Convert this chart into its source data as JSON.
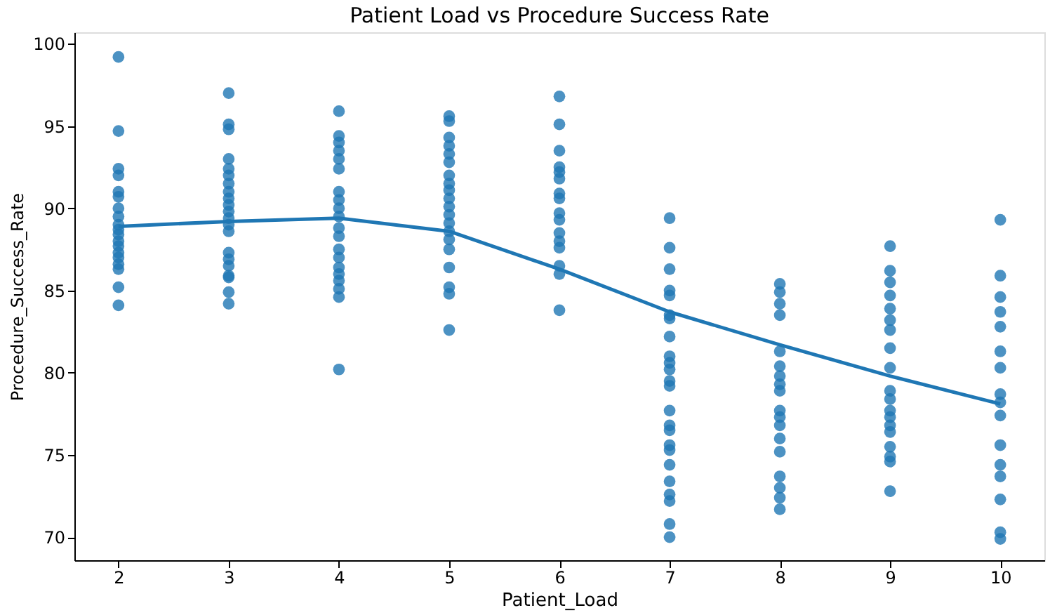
{
  "chart_data": {
    "type": "scatter",
    "title": "Patient Load vs Procedure Success Rate",
    "xlabel": "Patient_Load",
    "ylabel": "Procedure_Success_Rate",
    "xlim": [
      1.6,
      10.4
    ],
    "xticks": [
      2,
      3,
      4,
      5,
      6,
      7,
      8,
      9,
      10
    ],
    "ylim": [
      68.6,
      100.7
    ],
    "yticks": [
      70,
      75,
      80,
      85,
      90,
      95,
      100
    ],
    "grid": false,
    "series": [
      {
        "type": "scatter",
        "color": "#1f77b4",
        "marker": "circle",
        "x": [
          2,
          2,
          2,
          2,
          2,
          2,
          2,
          2,
          2,
          2,
          2,
          2,
          2,
          2,
          2,
          2,
          2,
          2,
          2,
          3,
          3,
          3,
          3,
          3,
          3,
          3,
          3,
          3,
          3,
          3,
          3,
          3,
          3,
          3,
          3,
          3,
          3,
          3,
          3,
          3,
          4,
          4,
          4,
          4,
          4,
          4,
          4,
          4,
          4,
          4,
          4,
          4,
          4,
          4,
          4,
          4,
          4,
          4,
          4,
          4,
          5,
          5,
          5,
          5,
          5,
          5,
          5,
          5,
          5,
          5,
          5,
          5,
          5,
          5,
          5,
          5,
          5,
          5,
          5,
          5,
          6,
          6,
          6,
          6,
          6,
          6,
          6,
          6,
          6,
          6,
          6,
          6,
          6,
          6,
          6,
          6,
          7,
          7,
          7,
          7,
          7,
          7,
          7,
          7,
          7,
          7,
          7,
          7,
          7,
          7,
          7,
          7,
          7,
          7,
          7,
          7,
          7,
          7,
          7,
          7,
          8,
          8,
          8,
          8,
          8,
          8,
          8,
          8,
          8,
          8,
          8,
          8,
          8,
          8,
          8,
          8,
          8,
          8,
          9,
          9,
          9,
          9,
          9,
          9,
          9,
          9,
          9,
          9,
          9,
          9,
          9,
          9,
          9,
          9,
          9,
          9,
          9,
          10,
          10,
          10,
          10,
          10,
          10,
          10,
          10,
          10,
          10,
          10,
          10,
          10,
          10,
          10,
          10
        ],
        "values": [
          99.2,
          94.7,
          92.4,
          92.0,
          91.0,
          90.7,
          90.0,
          89.5,
          89.0,
          88.7,
          88.4,
          88.0,
          87.7,
          87.3,
          87.0,
          86.6,
          86.3,
          85.2,
          84.1,
          97.0,
          95.1,
          94.8,
          93.0,
          92.4,
          92.0,
          91.5,
          91.0,
          90.6,
          90.2,
          89.8,
          89.4,
          89.0,
          88.6,
          87.3,
          86.9,
          86.5,
          85.9,
          85.8,
          84.9,
          84.2,
          95.9,
          94.4,
          94.0,
          93.5,
          93.0,
          92.4,
          91.0,
          90.5,
          90.0,
          89.5,
          88.8,
          88.3,
          87.5,
          87.0,
          86.4,
          86.0,
          85.6,
          85.1,
          84.6,
          80.2,
          95.6,
          95.3,
          94.3,
          93.8,
          93.3,
          92.8,
          92.0,
          91.5,
          91.1,
          90.6,
          90.1,
          89.6,
          89.1,
          88.6,
          88.1,
          87.5,
          86.4,
          85.2,
          84.8,
          82.6,
          96.8,
          95.1,
          93.5,
          92.5,
          92.2,
          91.8,
          90.9,
          90.6,
          89.7,
          89.3,
          88.5,
          88.0,
          87.6,
          86.5,
          86.0,
          83.8,
          89.4,
          87.6,
          86.3,
          85.0,
          84.7,
          83.5,
          83.3,
          82.2,
          81.0,
          80.6,
          80.2,
          79.5,
          79.2,
          77.7,
          76.8,
          76.5,
          75.6,
          75.3,
          74.4,
          73.4,
          72.6,
          72.2,
          70.8,
          70.0,
          85.4,
          84.9,
          84.2,
          83.5,
          81.3,
          80.4,
          79.8,
          79.3,
          78.9,
          77.7,
          77.3,
          76.8,
          76.0,
          75.2,
          73.7,
          73.0,
          72.4,
          71.7,
          87.7,
          86.2,
          85.5,
          84.7,
          83.9,
          83.2,
          82.6,
          81.5,
          80.3,
          78.9,
          78.4,
          77.7,
          77.3,
          76.8,
          76.4,
          75.5,
          74.9,
          74.6,
          72.8,
          89.3,
          85.9,
          84.6,
          83.7,
          82.8,
          81.3,
          80.3,
          78.7,
          78.2,
          77.4,
          75.6,
          74.4,
          73.7,
          72.3,
          70.3,
          69.9
        ]
      },
      {
        "type": "line",
        "color": "#1f77b4",
        "x": [
          2,
          3,
          4,
          5,
          6,
          7,
          8,
          9,
          10
        ],
        "values": [
          88.9,
          89.2,
          89.4,
          88.6,
          86.3,
          83.7,
          81.7,
          79.8,
          78.1
        ]
      }
    ]
  }
}
